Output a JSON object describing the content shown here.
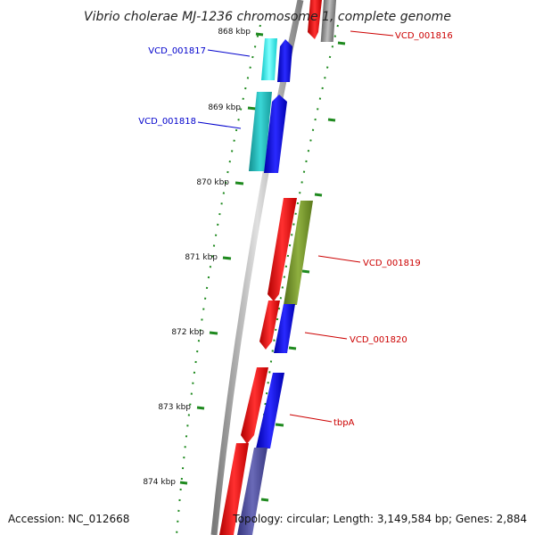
{
  "title": "Vibrio cholerae MJ-1236 chromosome 1, complete genome",
  "footer": {
    "accession": "Accession: NC_012668",
    "topology": "Topology: circular; Length: 3,149,584 bp; Genes: 2,884"
  },
  "ticks": [
    "868 kbp",
    "869 kbp",
    "870 kbp",
    "871 kbp",
    "872 kbp",
    "873 kbp",
    "874 kbp"
  ],
  "genes": [
    {
      "label": "VCD_001816",
      "color": "#cc0000"
    },
    {
      "label": "VCD_001817",
      "color": "#0000cc"
    },
    {
      "label": "VCD_001818",
      "color": "#0000cc"
    },
    {
      "label": "VCD_001819",
      "color": "#cc0000"
    },
    {
      "label": "VCD_001820",
      "color": "#cc0000"
    },
    {
      "label": "tbpA",
      "color": "#cc0000"
    }
  ],
  "colors": {
    "backbone": "#9a9a9a",
    "dots": "#1f8a1f",
    "cds_forward": "#ee1111",
    "cds_reverse": "#1111ee",
    "cyan": "#22e0e0",
    "teal": "#1fb3b3",
    "olive": "#6b8e23",
    "grey": "#8a8a8a",
    "slate": "#4a4a9a"
  }
}
